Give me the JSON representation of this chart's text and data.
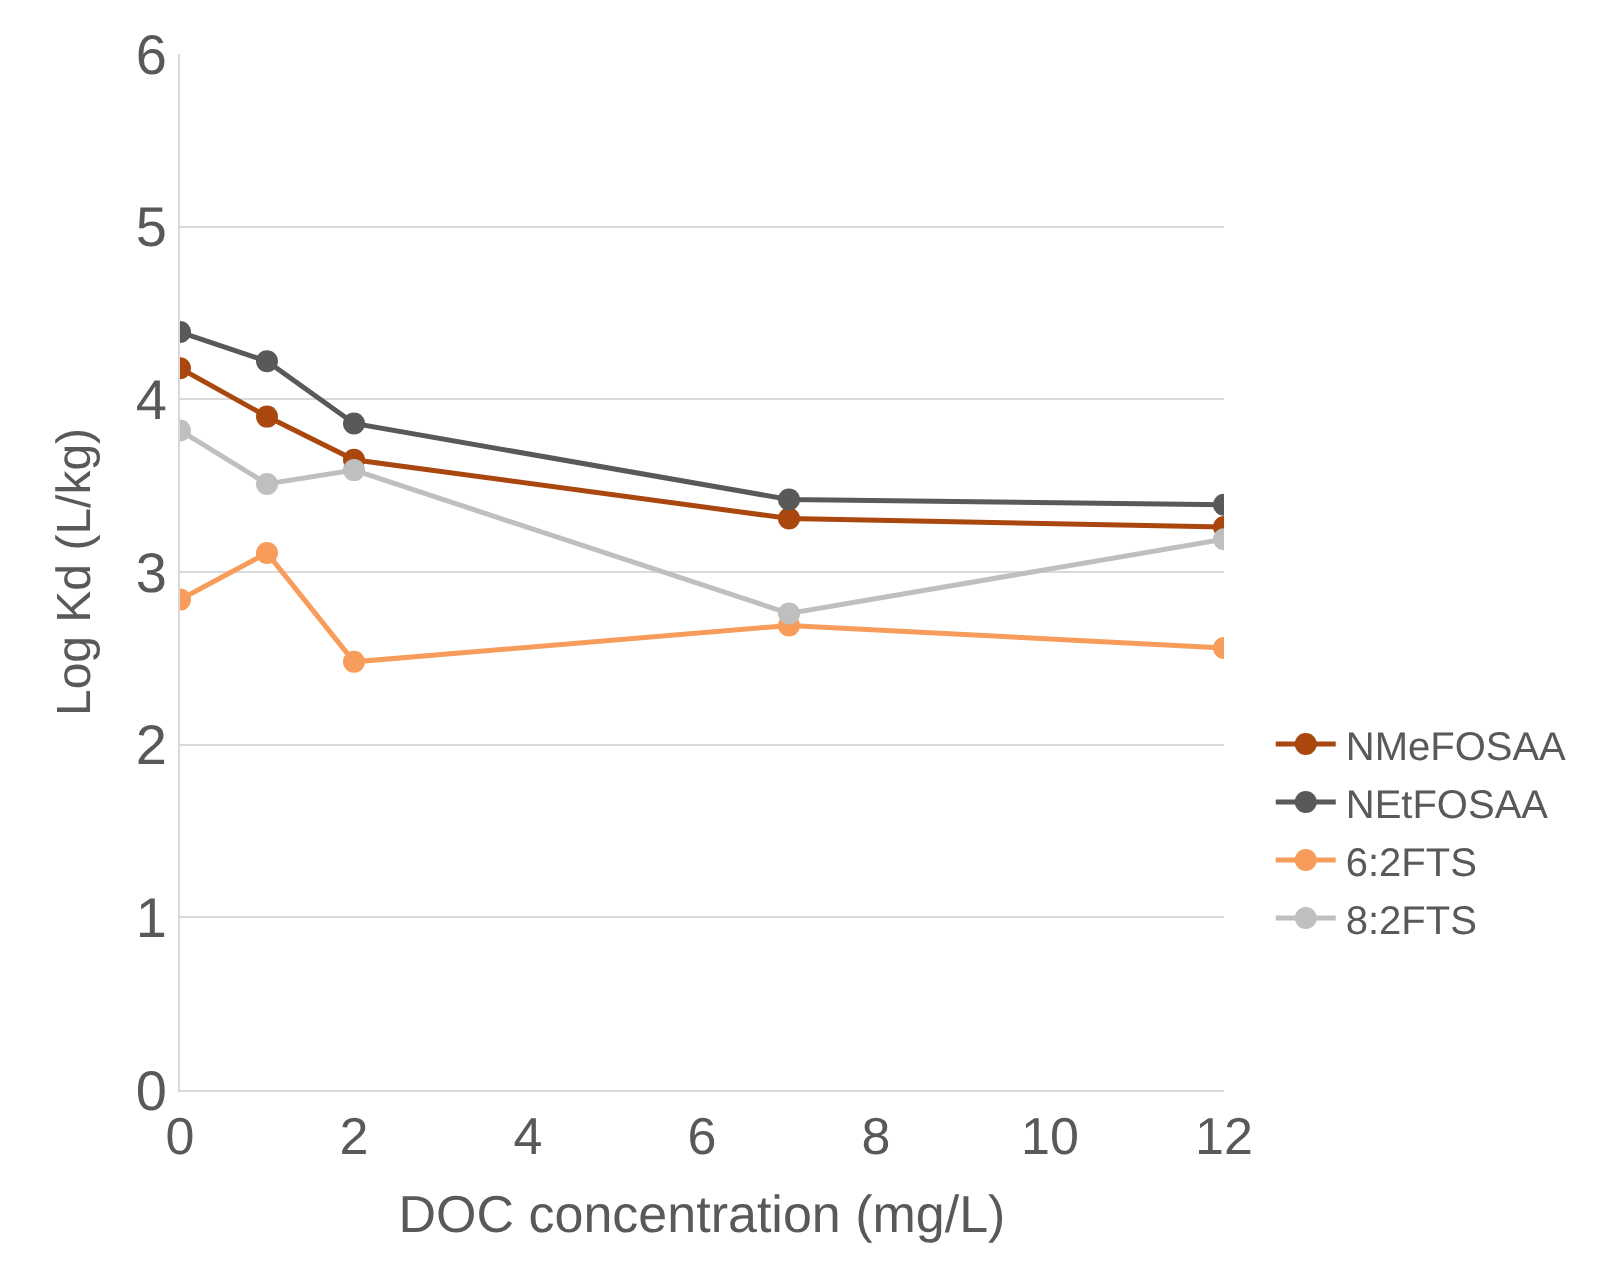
{
  "chart_data": {
    "type": "line",
    "xlabel": "DOC concentration (mg/L)",
    "ylabel": "Log Kd (L/kg)",
    "x": [
      0,
      1,
      2,
      7,
      12
    ],
    "series": [
      {
        "name": "NMeFOSAA",
        "color": "#a9470f",
        "values": [
          4.18,
          3.9,
          3.65,
          3.31,
          3.26
        ]
      },
      {
        "name": "NEtFOSAA",
        "color": "#595959",
        "values": [
          4.39,
          4.22,
          3.86,
          3.42,
          3.39
        ]
      },
      {
        "name": "6:2FTS",
        "color": "#f79c5a",
        "values": [
          2.84,
          3.11,
          2.48,
          2.69,
          2.56
        ]
      },
      {
        "name": "8:2FTS",
        "color": "#bfbfbf",
        "values": [
          3.82,
          3.51,
          3.59,
          2.76,
          3.19
        ]
      }
    ],
    "xlim": [
      0,
      12
    ],
    "xticks": [
      0,
      2,
      4,
      6,
      8,
      10,
      12
    ],
    "ylim": [
      0,
      6
    ],
    "yticks": [
      0,
      1,
      2,
      3,
      4,
      5,
      6
    ],
    "grid": "y",
    "legend": "right",
    "marker": "circle",
    "line_style": "solid"
  }
}
